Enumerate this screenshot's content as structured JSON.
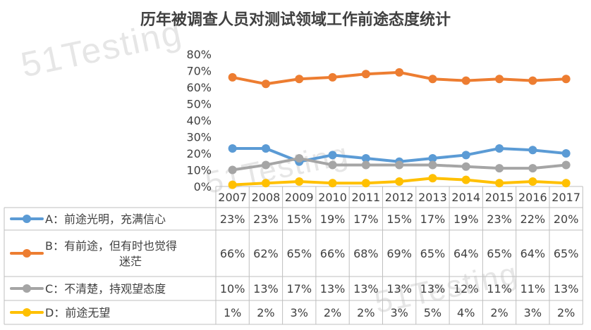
{
  "watermark": "51Testing",
  "chart_data": {
    "type": "line",
    "title": "历年被调查人员对测试领域工作前途态度统计",
    "categories": [
      "2007",
      "2008",
      "2009",
      "2010",
      "2011",
      "2012",
      "2013",
      "2014",
      "2015",
      "2016",
      "2017"
    ],
    "ylim": [
      0,
      80
    ],
    "yticks": [
      "0%",
      "10%",
      "20%",
      "30%",
      "40%",
      "50%",
      "60%",
      "70%",
      "80%"
    ],
    "grid": false,
    "legend": "data-table-left",
    "series": [
      {
        "name": "A：前途光明，充满信心",
        "name_lines": [
          "A：前途光明，充满信心"
        ],
        "color": "#5b9bd5",
        "values": [
          23,
          23,
          15,
          19,
          17,
          15,
          17,
          19,
          23,
          22,
          20
        ],
        "labels": [
          "23%",
          "23%",
          "15%",
          "19%",
          "17%",
          "15%",
          "17%",
          "19%",
          "23%",
          "22%",
          "20%"
        ]
      },
      {
        "name": "B：有前途，但有时也觉得迷茫",
        "name_lines": [
          "B：有前途，但有时也觉得",
          "迷茫"
        ],
        "color": "#ed7d31",
        "values": [
          66,
          62,
          65,
          66,
          68,
          69,
          65,
          64,
          65,
          64,
          65
        ],
        "labels": [
          "66%",
          "62%",
          "65%",
          "66%",
          "68%",
          "69%",
          "65%",
          "64%",
          "65%",
          "64%",
          "65%"
        ]
      },
      {
        "name": "C：不清楚，持观望态度",
        "name_lines": [
          "C：不清楚，持观望态度"
        ],
        "color": "#a5a5a5",
        "values": [
          10,
          13,
          17,
          13,
          13,
          13,
          13,
          12,
          11,
          11,
          13
        ],
        "labels": [
          "10%",
          "13%",
          "17%",
          "13%",
          "13%",
          "13%",
          "13%",
          "12%",
          "11%",
          "11%",
          "13%"
        ]
      },
      {
        "name": "D：前途无望",
        "name_lines": [
          "D：前途无望"
        ],
        "color": "#ffc000",
        "values": [
          1,
          2,
          3,
          2,
          2,
          3,
          5,
          4,
          2,
          3,
          2
        ],
        "labels": [
          "1%",
          "2%",
          "3%",
          "2%",
          "2%",
          "3%",
          "5%",
          "4%",
          "2%",
          "3%",
          "2%"
        ]
      }
    ]
  }
}
